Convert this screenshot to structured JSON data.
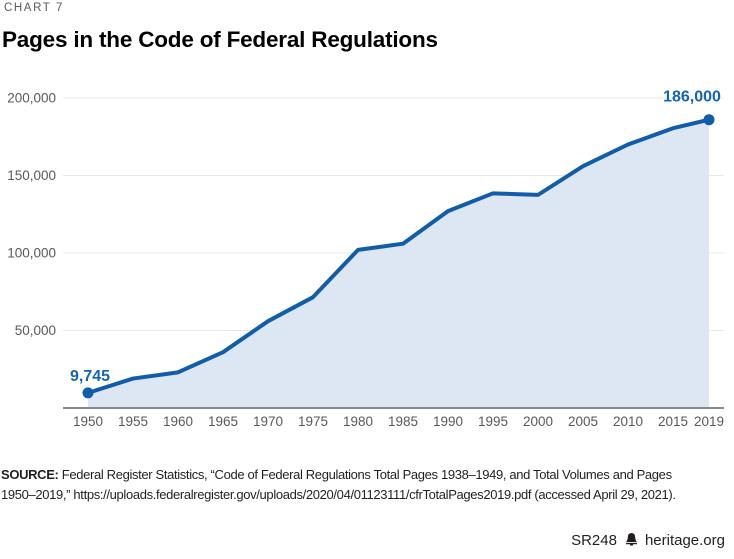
{
  "header": {
    "kicker": "CHART 7",
    "title": "Pages in the Code of Federal Regulations"
  },
  "chart_data": {
    "type": "area",
    "title": "Pages in the Code of Federal Regulations",
    "x": [
      1950,
      1955,
      1960,
      1965,
      1970,
      1975,
      1980,
      1985,
      1990,
      1995,
      2000,
      2005,
      2010,
      2015,
      2019
    ],
    "x_tick_labels": [
      "1950",
      "1955",
      "1960",
      "1965",
      "1970",
      "1975",
      "1980",
      "1985",
      "1990",
      "1995",
      "2000",
      "2005",
      "2010",
      "2015",
      "2019"
    ],
    "values": [
      9745,
      19000,
      23000,
      36000,
      56000,
      71500,
      102000,
      106000,
      127000,
      138500,
      137500,
      156000,
      170000,
      180500,
      186000
    ],
    "y_ticks": [
      {
        "value": 50000,
        "label": "50,000"
      },
      {
        "value": 100000,
        "label": "100,000"
      },
      {
        "value": 150000,
        "label": "150,000"
      },
      {
        "value": 200000,
        "label": "200,000"
      }
    ],
    "ylim": [
      0,
      215000
    ],
    "grid": "horizontal",
    "legend": "none",
    "point_labels": [
      {
        "x": 1950,
        "text": "9,745"
      },
      {
        "x": 2019,
        "text": "186,000"
      }
    ],
    "colors": {
      "line": "#115da9",
      "area": "#dce7f3",
      "grid": "#e8e8e8",
      "axis_line": "#87898b",
      "tick_text": "#58595b",
      "point_label_text": "#1464b4"
    }
  },
  "source": {
    "label": "SOURCE:",
    "lines": [
      " Federal Register Statistics, “Code of Federal Regulations Total Pages 1938–1949, and Total Volumes and Pages",
      "1950–2019,” https://uploads.federalregister.gov/uploads/2020/04/01123111/cfrTotalPages2019.pdf (accessed April 29, 2021)."
    ]
  },
  "footer": {
    "report_id": "SR248",
    "site": "heritage.org",
    "logo": "heritage-bell-icon"
  }
}
